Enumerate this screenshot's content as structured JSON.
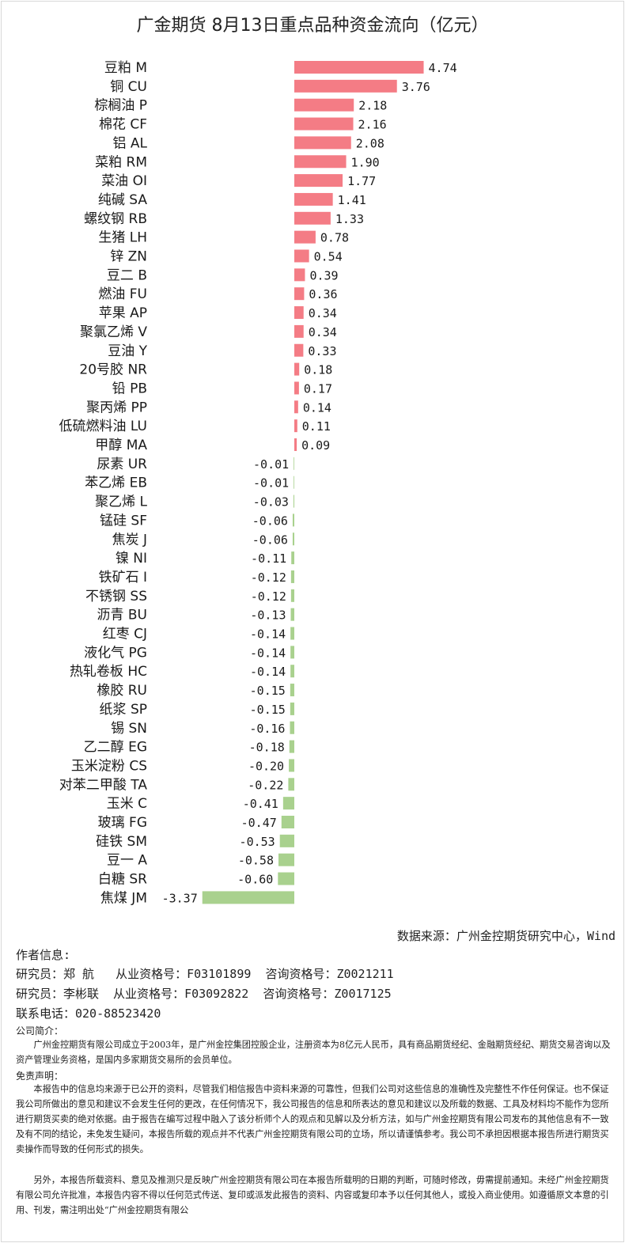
{
  "chart_data": {
    "type": "bar",
    "orientation": "horizontal",
    "title": "广金期货 8月13日重点品种资金流向（亿元）",
    "categories": [
      "豆粕 M",
      "铜 CU",
      "棕榈油 P",
      "棉花 CF",
      "铝 AL",
      "菜粕 RM",
      "菜油 OI",
      "纯碱 SA",
      "螺纹钢 RB",
      "生猪 LH",
      "锌 ZN",
      "豆二 B",
      "燃油 FU",
      "苹果 AP",
      "聚氯乙烯 V",
      "豆油 Y",
      "20号胶 NR",
      "铅 PB",
      "聚丙烯 PP",
      "低硫燃料油 LU",
      "甲醇 MA",
      "尿素 UR",
      "苯乙烯 EB",
      "聚乙烯 L",
      "锰硅 SF",
      "焦炭 J",
      "镍 NI",
      "铁矿石 I",
      "不锈钢 SS",
      "沥青 BU",
      "红枣 CJ",
      "液化气 PG",
      "热轧卷板 HC",
      "橡胶 RU",
      "纸浆 SP",
      "锡 SN",
      "乙二醇 EG",
      "玉米淀粉 CS",
      "对苯二甲酸 TA",
      "玉米 C",
      "玻璃 FG",
      "硅铁 SM",
      "豆一 A",
      "白糖 SR",
      "焦煤 JM"
    ],
    "values": [
      4.74,
      3.76,
      2.18,
      2.16,
      2.08,
      1.9,
      1.77,
      1.41,
      1.33,
      0.78,
      0.54,
      0.39,
      0.36,
      0.34,
      0.34,
      0.33,
      0.18,
      0.17,
      0.14,
      0.11,
      0.09,
      -0.01,
      -0.01,
      -0.03,
      -0.06,
      -0.06,
      -0.11,
      -0.12,
      -0.12,
      -0.13,
      -0.14,
      -0.14,
      -0.14,
      -0.15,
      -0.15,
      -0.16,
      -0.18,
      -0.2,
      -0.22,
      -0.41,
      -0.47,
      -0.53,
      -0.58,
      -0.6,
      -3.37
    ],
    "value_labels": [
      "4.74",
      "3.76",
      "2.18",
      "2.16",
      "2.08",
      "1.90",
      "1.77",
      "1.41",
      "1.33",
      "0.78",
      "0.54",
      "0.39",
      "0.36",
      "0.34",
      "0.34",
      "0.33",
      "0.18",
      "0.17",
      "0.14",
      "0.11",
      "0.09",
      "-0.01",
      "-0.01",
      "-0.03",
      "-0.06",
      "-0.06",
      "-0.11",
      "-0.12",
      "-0.12",
      "-0.13",
      "-0.14",
      "-0.14",
      "-0.14",
      "-0.15",
      "-0.15",
      "-0.16",
      "-0.18",
      "-0.20",
      "-0.22",
      "-0.41",
      "-0.47",
      "-0.53",
      "-0.58",
      "-0.60",
      "-3.37"
    ],
    "xlim": [
      -3.37,
      4.74
    ],
    "positive_color": "#f47c85",
    "negative_color": "#a9d18e",
    "grid": false,
    "legend": "none"
  },
  "source": "数据来源：广州金控期货研究中心，Wind",
  "author": {
    "heading": "作者信息:",
    "line1": "研究员：郑 航   从业资格号：F03101899  咨询资格号：Z0021211",
    "line2": "研究员：李彬联  从业资格号：F03092822  咨询资格号：Z0017125",
    "phone": "联系电话：020-88523420"
  },
  "company": {
    "heading": "公司简介：",
    "text": "广州金控期货有限公司成立于2003年，是广州金控集团控股企业，注册资本为8亿元人民币，具有商品期货经纪、金融期货经纪、期货交易咨询以及资产管理业务资格，是国内多家期货交易所的会员单位。"
  },
  "disclaimer": {
    "heading": "免责声明：",
    "p1": "本报告中的信息均来源于已公开的资料，尽管我们相信报告中资料来源的可靠性，但我们公司对这些信息的准确性及完整性不作任何保证。也不保证我公司所做出的意见和建议不会发生任何的更改，在任何情况下，我公司报告的信息和所表达的意见和建议以及所载的数据、工具及材料均不能作为您所进行期货买卖的绝对依据。由于报告在编写过程中融入了该分析师个人的观点和见解以及分析方法，如与广州金控期货有限公司发布的其他信息有不一致及有不同的结论，未免发生疑问，本报告所载的观点并不代表广州金控期货有限公司的立场，所以请谨慎参考。我公司不承担因根据本报告所进行期货买卖操作而导致的任何形式的损失。",
    "p2": "另外，本报告所载资料、意见及推测只是反映广州金控期货有限公司在本报告所载明的日期的判断，可随时修改，毋需提前通知。未经广州金控期货有限公司允许批准，本报告内容不得以任何范式传送、复印或派发此报告的资料、内容或复印本予以任何其他人，或投入商业使用。如遵循原文本意的引用、刊发，需注明出处“广州金控期货有限公"
  }
}
